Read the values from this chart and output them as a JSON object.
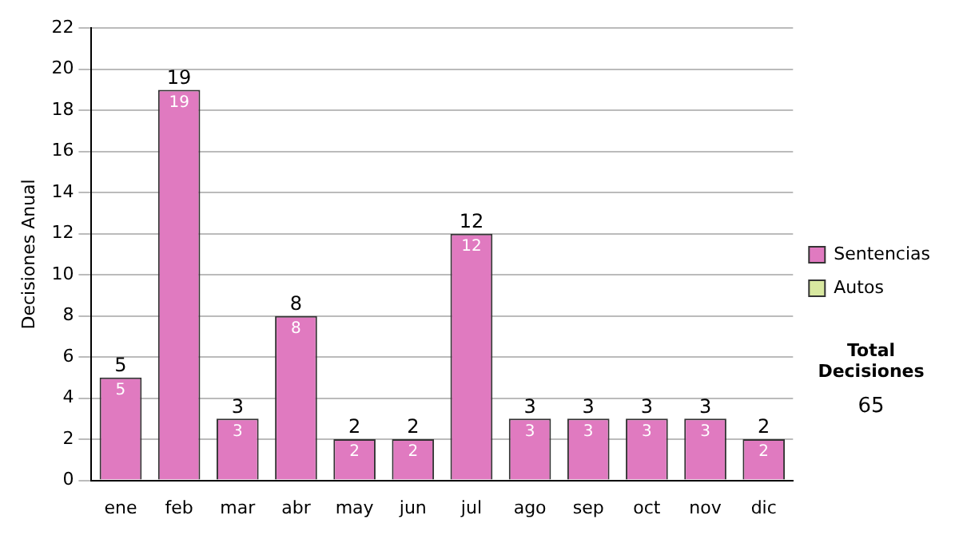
{
  "chart_data": {
    "type": "bar",
    "stacked": true,
    "ylabel": "Decisiones Anual",
    "categories": [
      "ene",
      "feb",
      "mar",
      "abr",
      "may",
      "jun",
      "jul",
      "ago",
      "sep",
      "oct",
      "nov",
      "dic"
    ],
    "series": [
      {
        "name": "Sentencias",
        "color": "#e07ac0",
        "values": [
          5,
          19,
          3,
          8,
          2,
          2,
          12,
          3,
          3,
          3,
          3,
          2
        ],
        "value_labels": [
          "5",
          "19",
          "3",
          "8",
          "2",
          "2",
          "12",
          "3",
          "3",
          "3",
          "3",
          "2"
        ]
      },
      {
        "name": "Autos",
        "color": "#d8e8a0",
        "values": [
          0,
          0,
          0,
          0,
          0,
          0,
          0,
          0,
          0,
          0,
          0,
          0
        ]
      }
    ],
    "totals": [
      "5",
      "19",
      "3",
      "8",
      "2",
      "2",
      "12",
      "3",
      "3",
      "3",
      "3",
      "2"
    ],
    "ylim": [
      0,
      22
    ],
    "yticks": [
      0,
      2,
      4,
      6,
      8,
      10,
      12,
      14,
      16,
      18,
      20,
      22
    ],
    "grid": "y",
    "legend": "right",
    "annotations": [
      "Total Decisiones",
      "65"
    ]
  }
}
